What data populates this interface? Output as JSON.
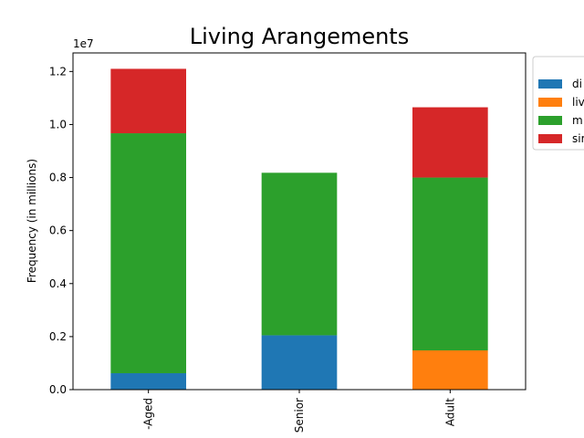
{
  "chart_data": {
    "type": "bar",
    "stacked": true,
    "title": "Living Arangements",
    "xlabel": "",
    "ylabel": "Frequency (in millions)",
    "offset_text": "1e7",
    "categories": [
      "-Aged",
      "Senior",
      "Adult"
    ],
    "ylim": [
      0,
      12700000
    ],
    "yticks": [
      "0.0",
      "0.2",
      "0.4",
      "0.6",
      "0.8",
      "1.0",
      "1.2"
    ],
    "ytick_values": [
      0,
      2000000,
      4000000,
      6000000,
      8000000,
      10000000,
      12000000
    ],
    "grid": false,
    "legend_position": "outside-right-top",
    "series": [
      {
        "name": "di",
        "color": "#1f77b4",
        "values": [
          620000,
          2050000,
          0
        ]
      },
      {
        "name": "liv",
        "color": "#ff7f0e",
        "values": [
          0,
          0,
          1480000
        ]
      },
      {
        "name": "m",
        "color": "#2ca02c",
        "values": [
          9050000,
          6130000,
          6520000
        ]
      },
      {
        "name": "sir",
        "color": "#d62728",
        "values": [
          2430000,
          0,
          2650000
        ]
      }
    ]
  }
}
